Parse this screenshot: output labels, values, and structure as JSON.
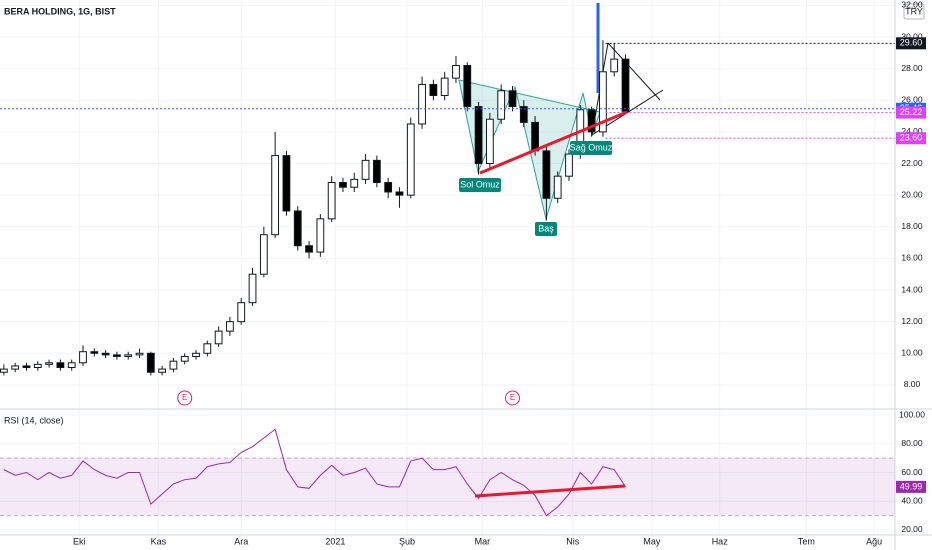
{
  "chart_data": [
    {
      "type": "candlestick",
      "title": "BERA HOLDING, 1G, BIST",
      "currency": "TRY",
      "x": [
        0,
        3,
        6,
        9,
        12,
        15,
        18,
        21,
        24,
        27,
        30,
        33,
        36,
        39,
        42,
        45,
        48,
        51,
        54,
        57,
        60,
        63,
        66,
        69,
        72,
        75,
        78,
        81,
        84,
        87,
        90,
        93,
        96,
        99,
        102,
        105,
        108,
        111,
        114,
        117,
        120,
        123,
        126,
        129,
        132,
        135,
        138,
        141,
        144,
        147,
        150,
        153,
        156,
        159,
        162,
        165
      ],
      "open": [
        8.8,
        9.0,
        9.2,
        9.1,
        9.3,
        9.4,
        9.1,
        9.4,
        10.1,
        10.0,
        9.9,
        9.8,
        9.9,
        10.0,
        8.8,
        9.0,
        9.5,
        9.8,
        10.0,
        10.6,
        11.4,
        12.0,
        13.2,
        15.0,
        17.5,
        22.5,
        19.0,
        16.8,
        16.4,
        18.5,
        20.8,
        20.5,
        21.0,
        22.2,
        20.8,
        20.2,
        20.0,
        24.5,
        27.0,
        26.3,
        27.4,
        28.2,
        25.6,
        22.0,
        24.8,
        26.6,
        25.6,
        24.6,
        22.8,
        19.8,
        21.2,
        22.6,
        25.4,
        24.0,
        27.8,
        28.6
      ],
      "high": [
        9.3,
        9.4,
        9.4,
        9.5,
        9.6,
        9.6,
        9.6,
        10.5,
        10.3,
        10.2,
        10.1,
        10.1,
        10.3,
        10.1,
        9.2,
        9.7,
        10.0,
        10.2,
        10.8,
        11.7,
        12.3,
        13.5,
        15.4,
        18.0,
        24.0,
        22.8,
        19.3,
        17.1,
        18.8,
        21.2,
        21.1,
        21.4,
        22.6,
        22.5,
        21.1,
        20.5,
        24.9,
        27.5,
        27.3,
        27.8,
        28.8,
        28.4,
        25.9,
        25.2,
        27.0,
        26.9,
        26.0,
        25.0,
        23.1,
        21.5,
        22.9,
        25.7,
        25.6,
        29.8,
        29.6,
        28.9
      ],
      "low": [
        8.6,
        8.8,
        8.9,
        8.9,
        9.1,
        8.9,
        8.9,
        9.2,
        9.8,
        9.7,
        9.6,
        9.6,
        9.7,
        8.6,
        8.6,
        8.8,
        9.3,
        9.6,
        9.8,
        10.4,
        11.1,
        11.8,
        13.0,
        14.8,
        17.3,
        18.7,
        16.5,
        16.0,
        16.1,
        18.3,
        20.2,
        20.2,
        20.7,
        20.5,
        19.8,
        19.2,
        19.8,
        24.2,
        26.0,
        26.0,
        27.1,
        25.3,
        21.3,
        21.7,
        24.5,
        25.3,
        24.3,
        22.5,
        18.4,
        19.5,
        20.9,
        22.3,
        23.7,
        23.7,
        27.5,
        25.1
      ],
      "close": [
        9.0,
        9.2,
        9.1,
        9.3,
        9.4,
        9.1,
        9.4,
        10.1,
        10.0,
        9.9,
        9.8,
        9.9,
        10.0,
        8.8,
        9.0,
        9.5,
        9.8,
        10.0,
        10.6,
        11.4,
        12.0,
        13.2,
        15.0,
        17.5,
        22.5,
        19.0,
        16.8,
        16.4,
        18.5,
        20.8,
        20.5,
        21.0,
        22.2,
        20.8,
        20.2,
        20.0,
        24.5,
        27.0,
        26.3,
        27.4,
        28.2,
        25.6,
        22.0,
        24.8,
        26.6,
        25.6,
        24.6,
        22.8,
        19.8,
        21.2,
        22.6,
        25.4,
        24.0,
        27.8,
        28.6,
        25.3
      ],
      "up_color": "#ffffff",
      "down_color": "#000000",
      "xlim": [
        -0.5,
        236
      ],
      "xticks": [
        {
          "value": 20,
          "label": "Eki"
        },
        {
          "value": 41,
          "label": "Kas"
        },
        {
          "value": 63,
          "label": "Ara"
        },
        {
          "value": 88,
          "label": "2021"
        },
        {
          "value": 107,
          "label": "Şub"
        },
        {
          "value": 127,
          "label": "Mar"
        },
        {
          "value": 151,
          "label": "Nis"
        },
        {
          "value": 172,
          "label": "May"
        },
        {
          "value": 190,
          "label": "Haz"
        },
        {
          "value": 213,
          "label": "Tem"
        },
        {
          "value": 231,
          "label": "Ağu"
        }
      ],
      "ylim": [
        6.54,
        32.34
      ],
      "yticks": [
        {
          "value": 8,
          "label": "8.00"
        },
        {
          "value": 10,
          "label": "10.00"
        },
        {
          "value": 12,
          "label": "12.00"
        },
        {
          "value": 14,
          "label": "14.00"
        },
        {
          "value": 16,
          "label": "16.00"
        },
        {
          "value": 18,
          "label": "18.00"
        },
        {
          "value": 20,
          "label": "20.00"
        },
        {
          "value": 22,
          "label": "22.00"
        },
        {
          "value": 24,
          "label": "24.00"
        },
        {
          "value": 26,
          "label": "26.00"
        },
        {
          "value": 28,
          "label": "28.00"
        },
        {
          "value": 30,
          "label": "30.00"
        },
        {
          "value": 32,
          "label": "32.00"
        }
      ],
      "grid": true,
      "price_lines": [
        {
          "value": 29.6,
          "label": "29.60",
          "color": "#131722"
        },
        {
          "value": 25.46,
          "label": "25.46",
          "color": "#2962ff"
        },
        {
          "value": 25.22,
          "label": "25.22",
          "color": "#e040fb"
        },
        {
          "value": 23.6,
          "label": "23.60",
          "color": "#e040fb"
        }
      ],
      "events": [
        {
          "x": 48,
          "label": "E"
        },
        {
          "x": 135,
          "label": "E"
        }
      ],
      "annotations": [
        "Sol Omuz",
        "Baş",
        "Sağ Omuz"
      ]
    },
    {
      "type": "line",
      "title": "RSI (14, close)",
      "color": "#9c27b0",
      "x": [
        0,
        3,
        6,
        9,
        12,
        15,
        18,
        21,
        24,
        27,
        30,
        33,
        36,
        39,
        42,
        45,
        48,
        51,
        54,
        57,
        60,
        63,
        66,
        69,
        72,
        75,
        78,
        81,
        84,
        87,
        90,
        93,
        96,
        99,
        102,
        105,
        108,
        111,
        114,
        117,
        120,
        123,
        126,
        129,
        132,
        135,
        138,
        141,
        144,
        147,
        150,
        153,
        156,
        159,
        162,
        165
      ],
      "values": [
        62,
        58,
        60,
        55,
        60,
        56,
        58,
        68,
        62,
        58,
        56,
        60,
        60,
        38,
        45,
        52,
        55,
        56,
        64,
        66,
        67,
        74,
        78,
        84,
        90,
        62,
        50,
        49,
        58,
        65,
        58,
        60,
        63,
        52,
        50,
        50,
        68,
        70,
        62,
        62,
        64,
        52,
        42,
        55,
        60,
        55,
        51,
        44,
        30,
        36,
        45,
        60,
        52,
        64,
        62,
        49.99
      ],
      "xlim": [
        -0.5,
        236
      ],
      "ylim": [
        16.5,
        103.5
      ],
      "yticks": [
        {
          "value": 20,
          "label": "20.00"
        },
        {
          "value": 40,
          "label": "40.00"
        },
        {
          "value": 60,
          "label": "60.00"
        },
        {
          "value": 80,
          "label": "80.00"
        },
        {
          "value": 100,
          "label": "100.00"
        }
      ],
      "band": [
        30,
        70
      ]
    }
  ]
}
